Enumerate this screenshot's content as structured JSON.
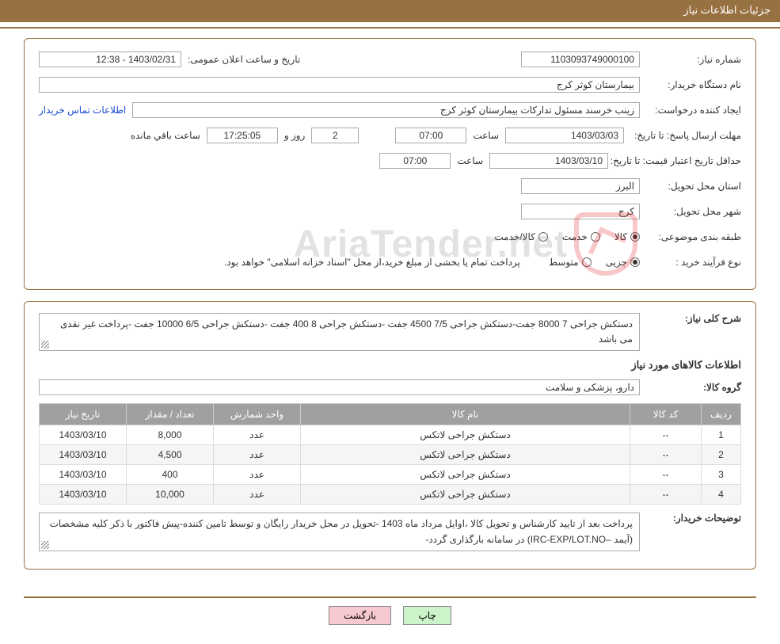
{
  "header": {
    "title": "جزئیات اطلاعات نیاز"
  },
  "section1": {
    "request_number_label": "شماره نیاز:",
    "request_number": "1103093749000100",
    "announce_label": "تاریخ و ساعت اعلان عمومی:",
    "announce_value": "1403/02/31 - 12:38",
    "buyer_org_label": "نام دستگاه خریدار:",
    "buyer_org": "بیمارستان کوثر کرج",
    "requester_label": "ایجاد کننده درخواست:",
    "requester": "زینب خرسند مسئول تدارکات بیمارستان کوثر کرج",
    "contact_link": "اطلاعات تماس خریدار",
    "deadline_label": "مهلت ارسال پاسخ: تا تاریخ:",
    "deadline_date": "1403/03/03",
    "time_label": "ساعت",
    "deadline_time": "07:00",
    "days_remaining": "2",
    "days_and_label": "روز  و",
    "countdown": "17:25:05",
    "countdown_suffix": "ساعت باقي مانده",
    "validity_label": "حداقل تاریخ اعتبار قیمت: تا تاریخ:",
    "validity_date": "1403/03/10",
    "validity_time": "07:00",
    "province_label": "استان محل تحویل:",
    "province": "البرز",
    "city_label": "شهر محل تحویل:",
    "city": "کرج",
    "category_label": "طبقه بندی موضوعی:",
    "cat_goods": "کالا",
    "cat_service": "خدمت",
    "cat_goods_service": "کالا/خدمت",
    "process_label": "نوع فرآیند خرید :",
    "proc_partial": "جزیی",
    "proc_medium": "متوسط",
    "process_note": "پرداخت تمام یا بخشی از مبلغ خرید،از محل \"اسناد خزانه اسلامی\" خواهد بود."
  },
  "section2": {
    "summary_label": "شرح کلی نیاز:",
    "summary": "دستکش جراحی 7 8000 جفت-دستکش جراحی 7/5 4500 جفت -دستکش جراحی 8 400 جفت -دستکش جراحی 6/5 10000 جفت -پرداخت غیر نقدی می باشد",
    "items_title": "اطلاعات کالاهای مورد نیاز",
    "group_label": "گروه کالا:",
    "group": "دارو، پزشکی و سلامت",
    "table": {
      "columns": [
        "ردیف",
        "کد کالا",
        "نام کالا",
        "واحد شمارش",
        "تعداد / مقدار",
        "تاریخ نیاز"
      ],
      "rows": [
        [
          "1",
          "--",
          "دستکش جراحی لاتکس",
          "عدد",
          "8,000",
          "1403/03/10"
        ],
        [
          "2",
          "--",
          "دستکش جراحی لاتکس",
          "عدد",
          "4,500",
          "1403/03/10"
        ],
        [
          "3",
          "--",
          "دستکش جراحی لاتکس",
          "عدد",
          "400",
          "1403/03/10"
        ],
        [
          "4",
          "--",
          "دستکش جراحی لاتکس",
          "عدد",
          "10,000",
          "1403/03/10"
        ]
      ],
      "col_widths": [
        "50px",
        "90px",
        "auto",
        "110px",
        "110px",
        "110px"
      ]
    },
    "buyer_notes_label": "توضیحات خریدار:",
    "buyer_notes": "پرداخت بعد از تایید کارشناس و تحویل کالا ،اوایل مرداد ماه 1403 -تحویل در محل خریدار رایگان و توسط تامین کننده-پیش فاکتور با ذکر کلیه مشخصات (آیمد –IRC-EXP/LOT.NO) در سامانه بارگذاری گردد-"
  },
  "buttons": {
    "print": "چاپ",
    "back": "بازگشت"
  },
  "watermark": {
    "text": "AriaTender.net"
  },
  "style": {
    "accent_color": "#987142",
    "header_bg": "#987142",
    "header_fg": "#ffffff",
    "table_header_bg": "#a0a0a0",
    "table_header_fg": "#ffffff",
    "link_color": "#1a4dd0",
    "btn_print_bg": "#ccf3c9",
    "btn_back_bg": "#f7c9d1",
    "border_color": "#aaaaaa",
    "font_size_base": 12
  }
}
